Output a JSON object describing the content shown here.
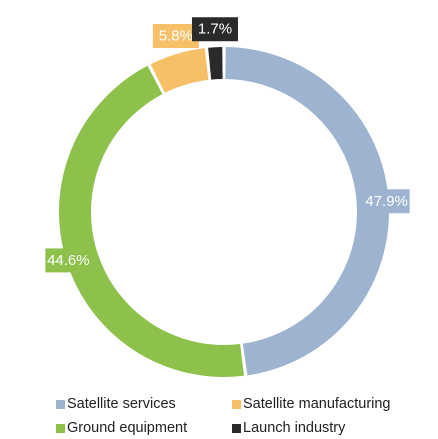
{
  "chart_data": {
    "type": "pie",
    "variant": "donut",
    "slices": [
      {
        "label": "Satellite services",
        "value": 47.9,
        "display": "47.9%",
        "color": "#9db3cf"
      },
      {
        "label": "Ground equipment",
        "value": 44.6,
        "display": "44.6%",
        "color": "#8ec04c"
      },
      {
        "label": "Satellite manufacturing",
        "value": 5.8,
        "display": "5.8%",
        "color": "#f6c069"
      },
      {
        "label": "Launch industry",
        "value": 1.7,
        "display": "1.7%",
        "color": "#2a2a2a"
      }
    ],
    "legend_position": "bottom",
    "legend": [
      {
        "label": "Satellite services",
        "color": "#9db3cf"
      },
      {
        "label": "Satellite manufacturing",
        "color": "#f6c069"
      },
      {
        "label": "Ground equipment",
        "color": "#8ec04c"
      },
      {
        "label": "Launch industry",
        "color": "#2a2a2a"
      }
    ]
  }
}
